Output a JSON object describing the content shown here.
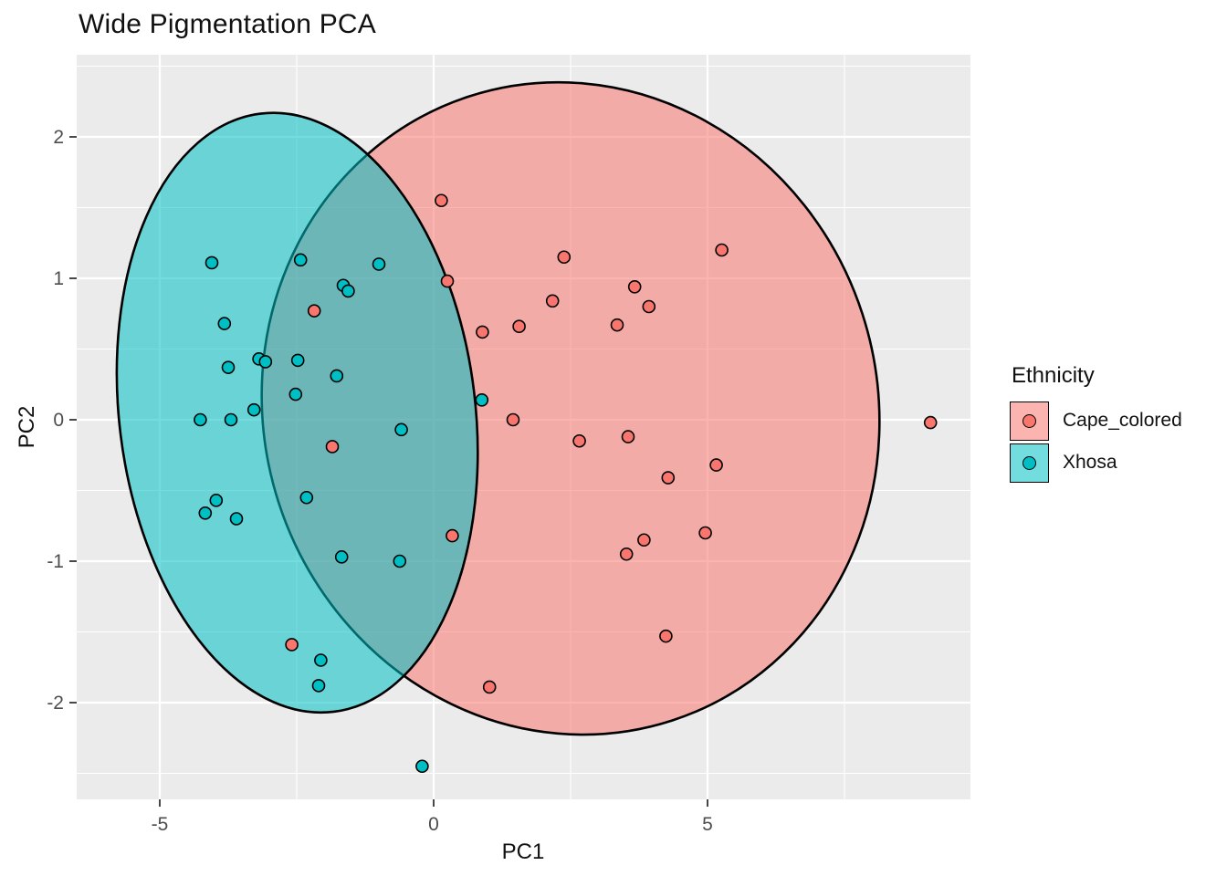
{
  "title": "Wide Pigmentation PCA",
  "axes": {
    "x": {
      "label": "PC1",
      "major_ticks": [
        -5,
        0,
        5
      ],
      "minor_ticks": [
        -2.5,
        2.5,
        7.5
      ],
      "domain": [
        -6.52,
        9.8
      ]
    },
    "y": {
      "label": "PC2",
      "major_ticks": [
        2,
        1,
        0,
        -1,
        -2
      ],
      "minor_ticks": [
        2.5,
        1.5,
        0.5,
        -0.5,
        -1.5,
        -2.5
      ],
      "domain": [
        -2.68,
        2.58
      ]
    }
  },
  "legend": {
    "title": "Ethnicity",
    "entries": [
      {
        "label": "Cape_colored",
        "color": "#F8766D"
      },
      {
        "label": "Xhosa",
        "color": "#00BFC4"
      }
    ]
  },
  "style": {
    "panel_bg": "#EBEBEB",
    "grid_color": "#FFFFFF",
    "tick_color": "#333333",
    "point_stroke": "#000000",
    "ellipse_stroke": "#000000",
    "fill_opacity": 0.55
  },
  "chart_data": {
    "type": "scatter",
    "title": "Wide Pigmentation PCA",
    "xlabel": "PC1",
    "ylabel": "PC2",
    "xlim": [
      -6.5,
      9.8
    ],
    "ylim": [
      -2.7,
      2.6
    ],
    "grid": true,
    "legend_position": "right",
    "series": [
      {
        "name": "Cape_colored",
        "color": "#F8766D",
        "points": [
          [
            0.14,
            1.55
          ],
          [
            0.25,
            0.98
          ],
          [
            5.26,
            1.2
          ],
          [
            2.38,
            1.15
          ],
          [
            3.67,
            0.94
          ],
          [
            2.17,
            0.84
          ],
          [
            3.93,
            0.8
          ],
          [
            0.89,
            0.62
          ],
          [
            1.56,
            0.66
          ],
          [
            3.35,
            0.67
          ],
          [
            1.45,
            0.0
          ],
          [
            2.66,
            -0.15
          ],
          [
            3.55,
            -0.12
          ],
          [
            5.16,
            -0.32
          ],
          [
            4.28,
            -0.41
          ],
          [
            0.34,
            -0.82
          ],
          [
            4.96,
            -0.8
          ],
          [
            3.84,
            -0.85
          ],
          [
            3.52,
            -0.95
          ],
          [
            4.24,
            -1.53
          ],
          [
            1.02,
            -1.89
          ],
          [
            -1.85,
            -0.19
          ],
          [
            -2.18,
            0.77
          ],
          [
            -2.59,
            -1.59
          ],
          [
            9.07,
            -0.02
          ]
        ]
      },
      {
        "name": "Xhosa",
        "color": "#00BFC4",
        "points": [
          [
            -4.05,
            1.11
          ],
          [
            -2.43,
            1.13
          ],
          [
            -1.0,
            1.1
          ],
          [
            -1.65,
            0.95
          ],
          [
            -1.56,
            0.91
          ],
          [
            -3.82,
            0.68
          ],
          [
            -3.75,
            0.37
          ],
          [
            -3.19,
            0.43
          ],
          [
            -3.07,
            0.41
          ],
          [
            -2.48,
            0.42
          ],
          [
            -1.77,
            0.31
          ],
          [
            -2.52,
            0.18
          ],
          [
            -3.28,
            0.07
          ],
          [
            -4.26,
            0.0
          ],
          [
            -3.7,
            0.0
          ],
          [
            -0.59,
            -0.07
          ],
          [
            0.88,
            0.14
          ],
          [
            -2.32,
            -0.55
          ],
          [
            -3.97,
            -0.57
          ],
          [
            -4.17,
            -0.66
          ],
          [
            -3.6,
            -0.7
          ],
          [
            -1.68,
            -0.97
          ],
          [
            -0.62,
            -1.0
          ],
          [
            -2.06,
            -1.7
          ],
          [
            -2.1,
            -1.88
          ],
          [
            -0.21,
            -2.45
          ]
        ]
      }
    ],
    "ellipses": [
      {
        "series": "Cape_colored",
        "color": "#F8766D",
        "cx": 2.5,
        "cy": 0.08,
        "rx": 5.6,
        "ry": 2.32,
        "rotate_deg": -18
      },
      {
        "series": "Xhosa",
        "color": "#00BFC4",
        "cx": -2.49,
        "cy": 0.05,
        "rx": 3.25,
        "ry": 2.13,
        "rotate_deg": -7
      }
    ]
  }
}
